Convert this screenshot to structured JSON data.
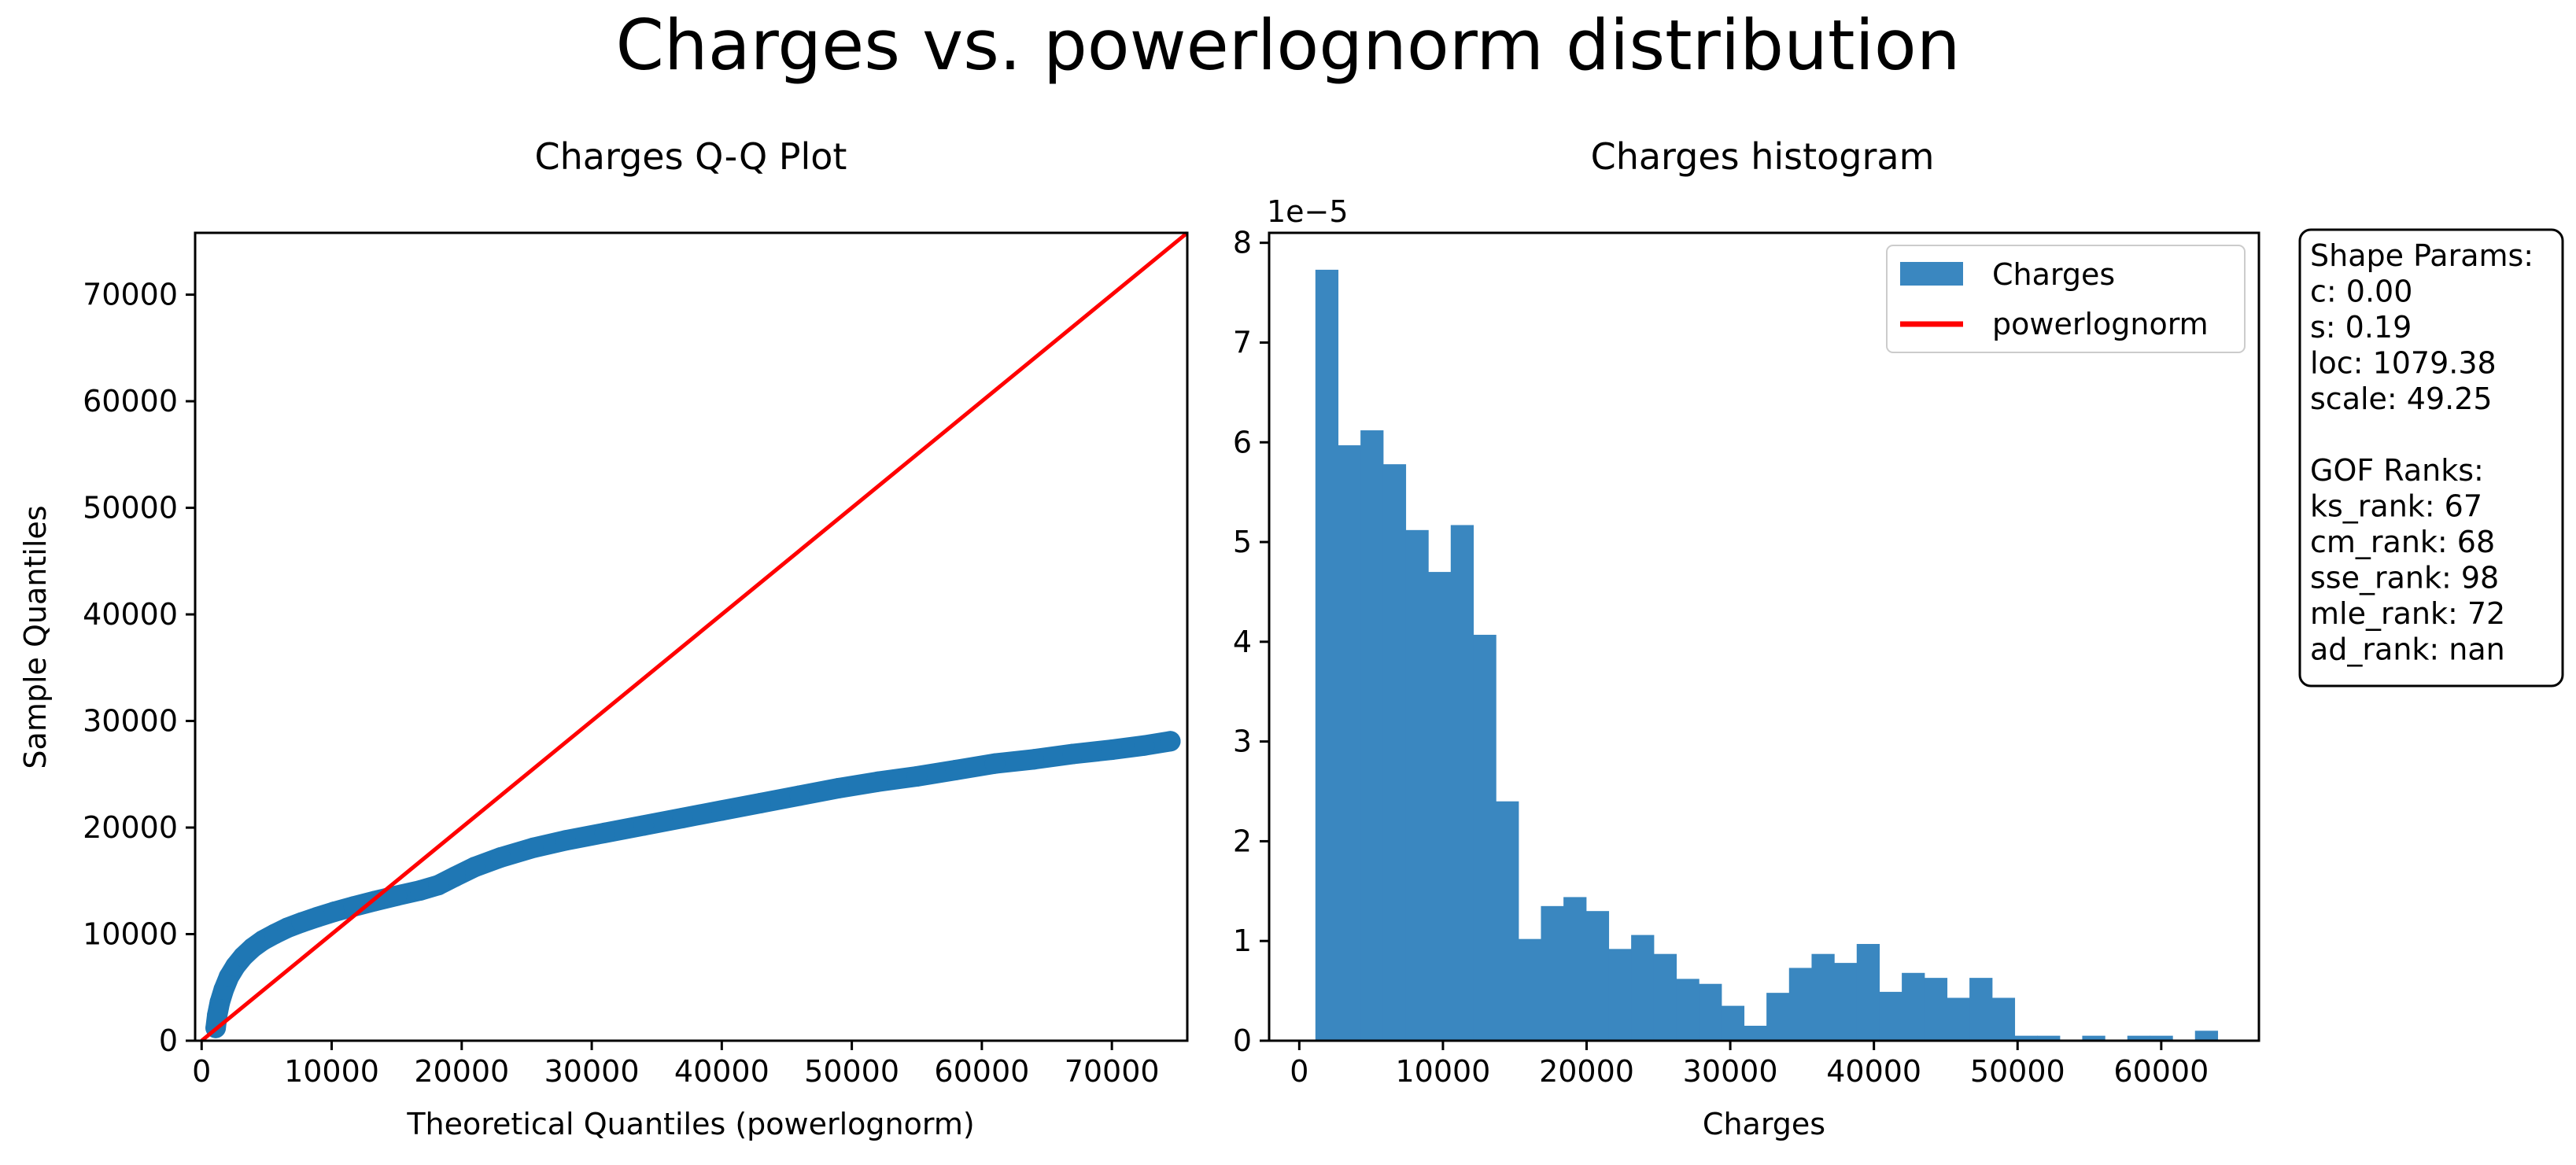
{
  "figure_title": "Charges vs. powerlognorm distribution",
  "colors": {
    "data": "#1f77b4",
    "hist": "#3a87c0",
    "fit": "#ff0000",
    "axis": "#000000"
  },
  "chart_data": [
    {
      "id": "qq",
      "type": "scatter",
      "title": "Charges Q-Q Plot",
      "xlabel": "Theoretical Quantiles (powerlognorm)",
      "ylabel": "Sample Quantiles",
      "xlim": [
        -500,
        75800
      ],
      "ylim": [
        0,
        75800
      ],
      "xticks": [
        0,
        10000,
        20000,
        30000,
        40000,
        50000,
        60000,
        70000
      ],
      "yticks": [
        0,
        10000,
        20000,
        30000,
        40000,
        50000,
        60000,
        70000
      ],
      "reference_line": {
        "name": "",
        "x": [
          0,
          75800
        ],
        "y": [
          0,
          75800
        ]
      },
      "series": [
        {
          "name": "",
          "points": [
            [
              1080,
              1200
            ],
            [
              1200,
              2400
            ],
            [
              1400,
              3600
            ],
            [
              1700,
              4800
            ],
            [
              2100,
              6000
            ],
            [
              2600,
              7000
            ],
            [
              3200,
              7900
            ],
            [
              3900,
              8700
            ],
            [
              4700,
              9400
            ],
            [
              5600,
              10000
            ],
            [
              6600,
              10600
            ],
            [
              7700,
              11100
            ],
            [
              8900,
              11600
            ],
            [
              10200,
              12100
            ],
            [
              11700,
              12600
            ],
            [
              13300,
              13100
            ],
            [
              15000,
              13600
            ],
            [
              16800,
              14100
            ],
            [
              18200,
              14600
            ],
            [
              19500,
              15400
            ],
            [
              21000,
              16300
            ],
            [
              23000,
              17200
            ],
            [
              25500,
              18100
            ],
            [
              28000,
              18800
            ],
            [
              31000,
              19500
            ],
            [
              34000,
              20200
            ],
            [
              37000,
              20900
            ],
            [
              40000,
              21600
            ],
            [
              43000,
              22300
            ],
            [
              46000,
              23000
            ],
            [
              49000,
              23700
            ],
            [
              52000,
              24300
            ],
            [
              55000,
              24800
            ],
            [
              58000,
              25400
            ],
            [
              61000,
              26000
            ],
            [
              64000,
              26400
            ],
            [
              67000,
              26900
            ],
            [
              70000,
              27300
            ],
            [
              72500,
              27700
            ],
            [
              74500,
              28100
            ]
          ]
        }
      ]
    },
    {
      "id": "hist",
      "type": "bar",
      "title": "Charges histogram",
      "xlabel": "Charges",
      "ylabel": "",
      "offset_label": "1e−5",
      "xlim": [
        -2100,
        66800
      ],
      "ylim": [
        0,
        8.1
      ],
      "xticks": [
        0,
        10000,
        20000,
        30000,
        40000,
        50000,
        60000
      ],
      "yticks": [
        0,
        1,
        2,
        3,
        4,
        5,
        6,
        7,
        8
      ],
      "bin_start": 1121,
      "bin_width": 1570,
      "values": [
        7.73,
        5.97,
        6.12,
        5.78,
        5.12,
        4.7,
        5.17,
        4.07,
        2.4,
        1.02,
        1.35,
        1.44,
        1.3,
        0.92,
        1.06,
        0.87,
        0.62,
        0.57,
        0.35,
        0.15,
        0.48,
        0.73,
        0.87,
        0.78,
        0.97,
        0.49,
        0.68,
        0.63,
        0.43,
        0.63,
        0.43,
        0.05,
        0.05,
        0,
        0.05,
        0,
        0.05,
        0.05,
        0,
        0.1
      ],
      "legend": {
        "position": "upper right",
        "entries": [
          {
            "label": "Charges",
            "kind": "patch"
          },
          {
            "label": "powerlognorm",
            "kind": "line"
          }
        ]
      }
    }
  ],
  "info_box": {
    "lines": [
      "Shape Params:",
      "c: 0.00",
      "s: 0.19",
      "loc: 1079.38",
      "scale: 49.25",
      "",
      "GOF Ranks:",
      "ks_rank: 67",
      "cm_rank: 68",
      "sse_rank: 98",
      "mle_rank: 72",
      "ad_rank: nan"
    ]
  }
}
